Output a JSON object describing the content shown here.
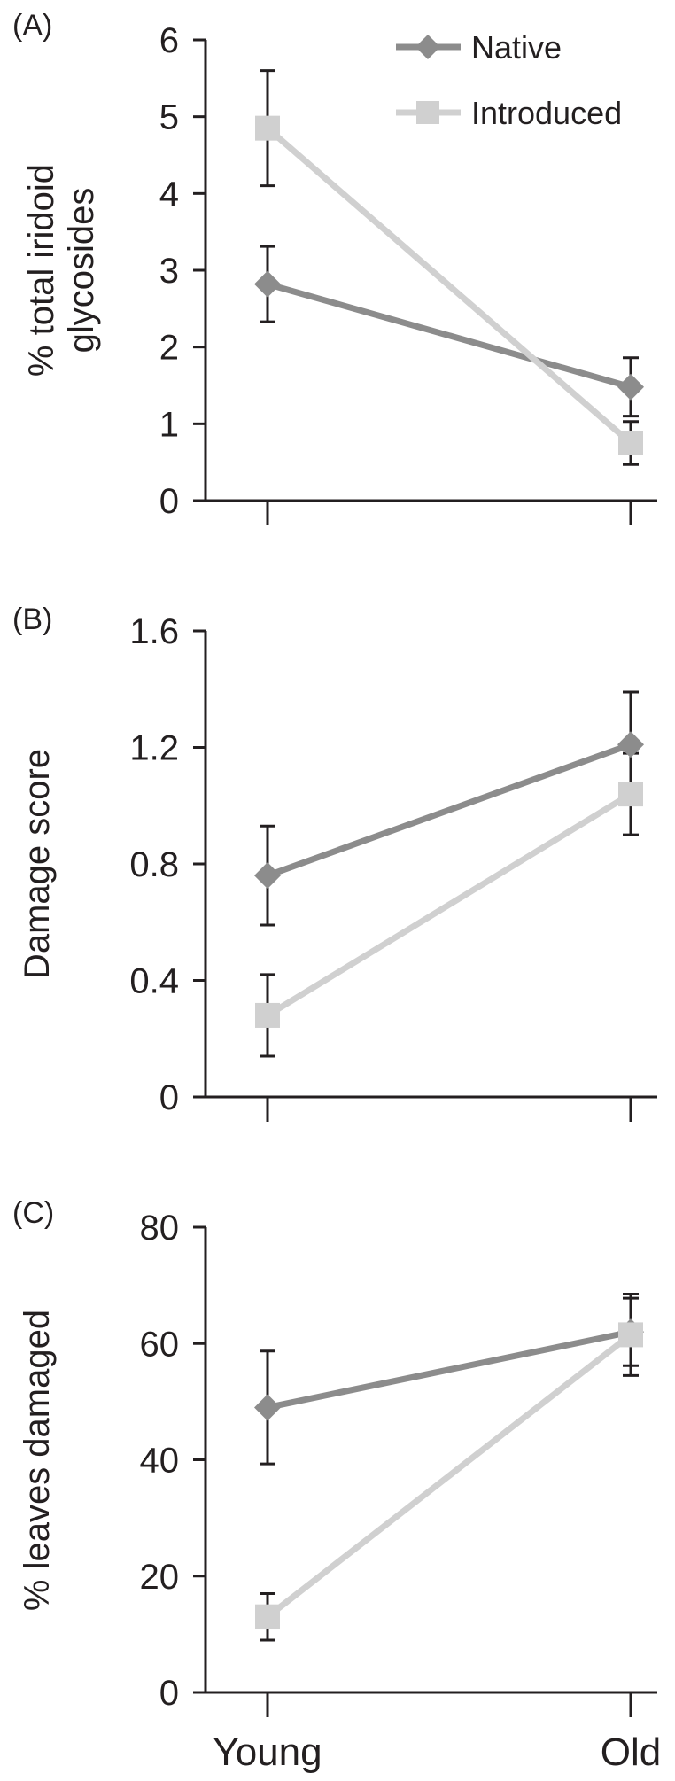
{
  "chart_data": [
    {
      "type": "line",
      "panel_label": "(A)",
      "ylabel": [
        "% total iridoid",
        "glycosides"
      ],
      "ylim": [
        0,
        6
      ],
      "yticks": [
        0,
        1,
        2,
        3,
        4,
        5,
        6
      ],
      "categories": [
        "Young",
        "Old"
      ],
      "show_category_labels": false,
      "legend": {
        "position": "top-right",
        "entries": [
          "Native",
          "Introduced"
        ]
      },
      "series": [
        {
          "name": "Native",
          "marker": "diamond",
          "color": "#8c8c8c",
          "values": [
            2.82,
            1.48
          ],
          "error": [
            0.49,
            0.38
          ]
        },
        {
          "name": "Introduced",
          "marker": "square",
          "color": "#d0d0d0",
          "values": [
            4.85,
            0.75
          ],
          "error": [
            0.75,
            0.28
          ]
        }
      ]
    },
    {
      "type": "line",
      "panel_label": "(B)",
      "ylabel": [
        "Damage score"
      ],
      "ylim": [
        0,
        1.6
      ],
      "yticks": [
        "0",
        "0.4",
        "0.8",
        "1.2",
        "1.6"
      ],
      "categories": [
        "Young",
        "Old"
      ],
      "show_category_labels": false,
      "series": [
        {
          "name": "Native",
          "marker": "diamond",
          "color": "#8c8c8c",
          "values": [
            0.76,
            1.21
          ],
          "error": [
            0.17,
            0.18
          ]
        },
        {
          "name": "Introduced",
          "marker": "square",
          "color": "#d0d0d0",
          "values": [
            0.28,
            1.04
          ],
          "error": [
            0.14,
            0.14
          ]
        }
      ]
    },
    {
      "type": "line",
      "panel_label": "(C)",
      "ylabel": [
        "% leaves damaged"
      ],
      "ylim": [
        0,
        80
      ],
      "yticks": [
        0,
        20,
        40,
        60,
        80
      ],
      "categories": [
        "Young",
        "Old"
      ],
      "show_category_labels": true,
      "series": [
        {
          "name": "Native",
          "marker": "diamond",
          "color": "#8c8c8c",
          "values": [
            49,
            62
          ],
          "error": [
            9.7,
            5.8
          ]
        },
        {
          "name": "Introduced",
          "marker": "square",
          "color": "#d0d0d0",
          "values": [
            13,
            61.5
          ],
          "error": [
            4,
            7
          ]
        }
      ]
    }
  ]
}
